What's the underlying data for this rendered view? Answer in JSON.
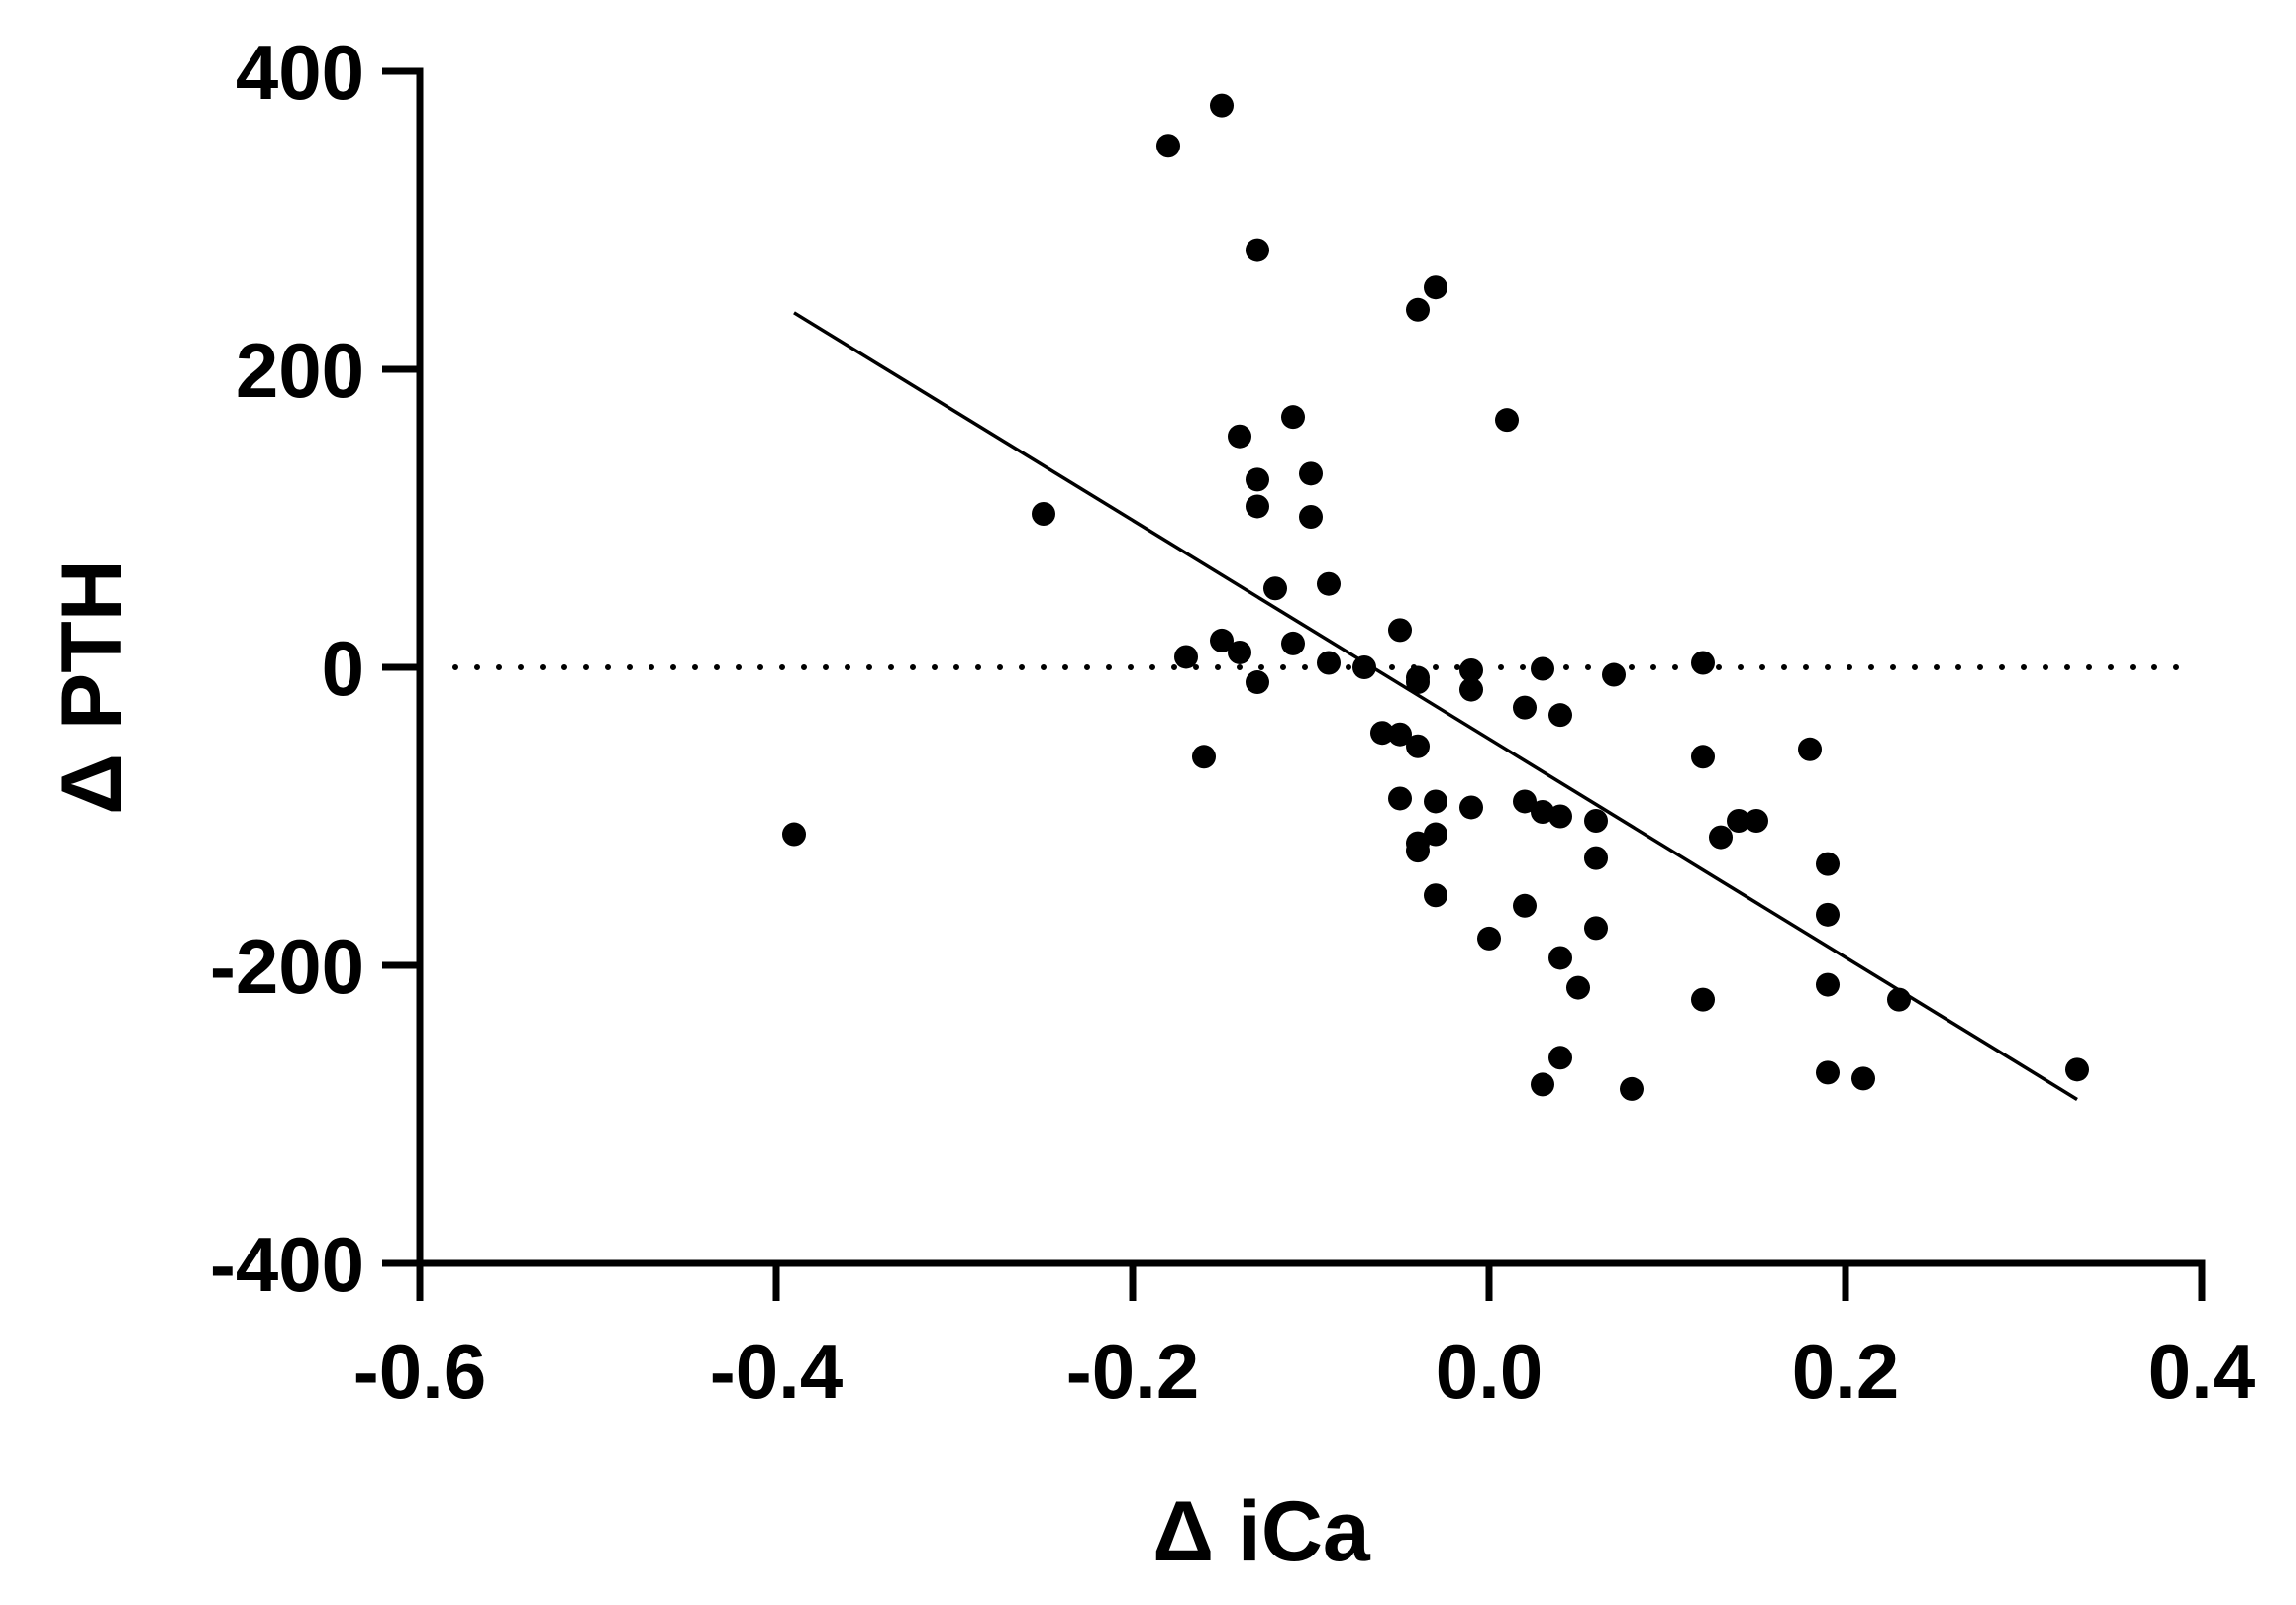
{
  "chart_data": {
    "type": "scatter",
    "xlabel": "Δ iCa",
    "ylabel": "Δ PTH",
    "xlim": [
      -0.6,
      0.4
    ],
    "ylim": [
      -400,
      400
    ],
    "x_ticks": [
      -0.6,
      -0.4,
      -0.2,
      0.0,
      0.2,
      0.4
    ],
    "x_tick_labels": [
      "-0.6",
      "-0.4",
      "-0.2",
      "0.0",
      "0.2",
      "0.4"
    ],
    "y_ticks": [
      -400,
      -200,
      0,
      200,
      400
    ],
    "y_tick_labels": [
      "-400",
      "-200",
      "0",
      "200",
      "400"
    ],
    "grid": false,
    "reference_line": {
      "y": 0,
      "style": "dotted"
    },
    "regression_line": {
      "x": [
        -0.39,
        0.33
      ],
      "y": [
        238,
        -290
      ]
    },
    "points": [
      {
        "x": -0.39,
        "y": -112
      },
      {
        "x": -0.25,
        "y": 103
      },
      {
        "x": -0.18,
        "y": 350
      },
      {
        "x": -0.15,
        "y": 377
      },
      {
        "x": -0.13,
        "y": 280
      },
      {
        "x": -0.17,
        "y": 7
      },
      {
        "x": -0.16,
        "y": -60
      },
      {
        "x": -0.15,
        "y": 18
      },
      {
        "x": -0.14,
        "y": 155
      },
      {
        "x": -0.14,
        "y": 10
      },
      {
        "x": -0.13,
        "y": 126
      },
      {
        "x": -0.13,
        "y": 108
      },
      {
        "x": -0.13,
        "y": -10
      },
      {
        "x": -0.12,
        "y": 53
      },
      {
        "x": -0.11,
        "y": 168
      },
      {
        "x": -0.11,
        "y": 16
      },
      {
        "x": -0.1,
        "y": 130
      },
      {
        "x": -0.1,
        "y": 101
      },
      {
        "x": -0.09,
        "y": 56
      },
      {
        "x": -0.09,
        "y": 3
      },
      {
        "x": -0.07,
        "y": 0
      },
      {
        "x": -0.06,
        "y": -44
      },
      {
        "x": -0.05,
        "y": 25
      },
      {
        "x": -0.05,
        "y": -45
      },
      {
        "x": -0.05,
        "y": -88
      },
      {
        "x": -0.04,
        "y": 240
      },
      {
        "x": -0.04,
        "y": -7
      },
      {
        "x": -0.04,
        "y": -10
      },
      {
        "x": -0.04,
        "y": -53
      },
      {
        "x": -0.04,
        "y": -118
      },
      {
        "x": -0.04,
        "y": -123
      },
      {
        "x": -0.03,
        "y": 255
      },
      {
        "x": -0.03,
        "y": -90
      },
      {
        "x": -0.03,
        "y": -112
      },
      {
        "x": -0.03,
        "y": -153
      },
      {
        "x": -0.01,
        "y": -2
      },
      {
        "x": -0.01,
        "y": -15
      },
      {
        "x": -0.01,
        "y": -94
      },
      {
        "x": 0.0,
        "y": -182
      },
      {
        "x": 0.01,
        "y": 166
      },
      {
        "x": 0.02,
        "y": -27
      },
      {
        "x": 0.02,
        "y": -90
      },
      {
        "x": 0.02,
        "y": -160
      },
      {
        "x": 0.03,
        "y": -1
      },
      {
        "x": 0.03,
        "y": -97
      },
      {
        "x": 0.03,
        "y": -280
      },
      {
        "x": 0.04,
        "y": -32
      },
      {
        "x": 0.04,
        "y": -100
      },
      {
        "x": 0.04,
        "y": -195
      },
      {
        "x": 0.04,
        "y": -262
      },
      {
        "x": 0.05,
        "y": -215
      },
      {
        "x": 0.06,
        "y": -103
      },
      {
        "x": 0.06,
        "y": -128
      },
      {
        "x": 0.06,
        "y": -175
      },
      {
        "x": 0.07,
        "y": -5
      },
      {
        "x": 0.08,
        "y": -283
      },
      {
        "x": 0.12,
        "y": 3
      },
      {
        "x": 0.12,
        "y": -60
      },
      {
        "x": 0.12,
        "y": -223
      },
      {
        "x": 0.13,
        "y": -114
      },
      {
        "x": 0.14,
        "y": -103
      },
      {
        "x": 0.15,
        "y": -103
      },
      {
        "x": 0.18,
        "y": -55
      },
      {
        "x": 0.19,
        "y": -132
      },
      {
        "x": 0.19,
        "y": -166
      },
      {
        "x": 0.19,
        "y": -213
      },
      {
        "x": 0.19,
        "y": -272
      },
      {
        "x": 0.21,
        "y": -276
      },
      {
        "x": 0.23,
        "y": -223
      },
      {
        "x": 0.33,
        "y": -270
      }
    ]
  }
}
